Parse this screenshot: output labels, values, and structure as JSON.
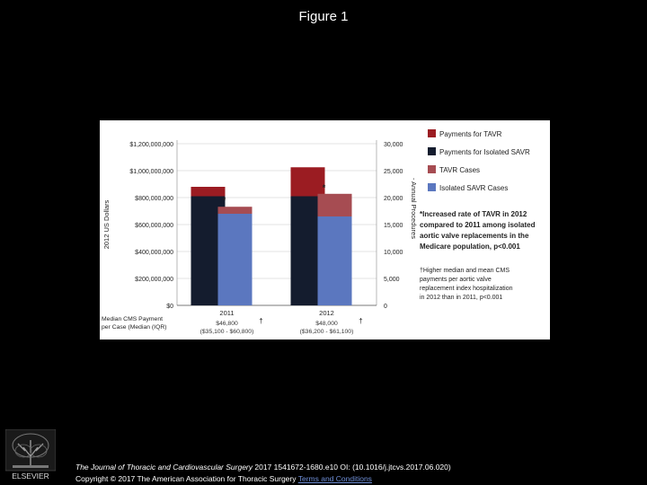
{
  "slide": {
    "title": "Figure 1",
    "citation_journal": "The Journal of Thoracic and Cardiovascular Surgery",
    "citation_rest": " 2017 1541672-1680.e10 OI: (10.1016/j.jtcvs.2017.06.020)",
    "copyright_text": "Copyright © 2017 The American Association for Thoracic Surgery",
    "copyright_link": "Terms and Conditions",
    "logo_label": "ELSEVIER"
  },
  "colors": {
    "payments_tavr": "#9b1c22",
    "payments_savr": "#141c2e",
    "tavr_cases": "#a64c52",
    "savr_cases": "#5b77bf"
  },
  "chart_data": {
    "type": "bar",
    "categories": [
      "2011",
      "2012"
    ],
    "ylabel": "2012 US Dollars",
    "y2label": "Annual Procedures",
    "ylim": [
      0,
      1200000000
    ],
    "y2lim": [
      0,
      30000
    ],
    "yticks": [
      "$0",
      "$200,000,000",
      "$400,000,000",
      "$600,000,000",
      "$800,000,000",
      "$1,000,000,000",
      "$1,200,000,000"
    ],
    "y2ticks": [
      "0",
      "5,000",
      "10,000",
      "15,000",
      "20,000",
      "25,000",
      "30,000"
    ],
    "payments_series": [
      {
        "name": "Payments for Isolated SAVR",
        "values": [
          810000000,
          810000000
        ]
      },
      {
        "name": "Payments for TAVR",
        "values": [
          70000000,
          215000000
        ]
      }
    ],
    "cases_series": [
      {
        "name": "Isolated SAVR Cases",
        "values": [
          17000,
          16500
        ]
      },
      {
        "name": "TAVR Cases",
        "values": [
          1300,
          4200
        ]
      }
    ],
    "bar_markers": [
      "*",
      "*"
    ],
    "legend_order": [
      "Payments for TAVR",
      "Payments for Isolated SAVR",
      "TAVR Cases",
      "Isolated SAVR Cases"
    ],
    "legend_position": "right",
    "median_label_line1": "Median CMS Payment",
    "median_label_line2": "per Case (Median (IQR)",
    "median_payments": [
      {
        "median": "$46,800",
        "iqr": "($35,100 - $60,800)",
        "marker": "†"
      },
      {
        "median": "$48,000",
        "iqr": "($36,200 - $61,100)",
        "marker": "†"
      }
    ],
    "annotation_1": [
      "*Increased rate of TAVR in 2012",
      "compared to 2011 among isolated",
      "aortic valve replacements in the",
      "Medicare population, p<0.001"
    ],
    "annotation_2": [
      "†Higher median and mean CMS",
      "payments per aortic valve",
      "replacement index hospitalization",
      "in 2012 than in 2011, p<0.001"
    ]
  }
}
